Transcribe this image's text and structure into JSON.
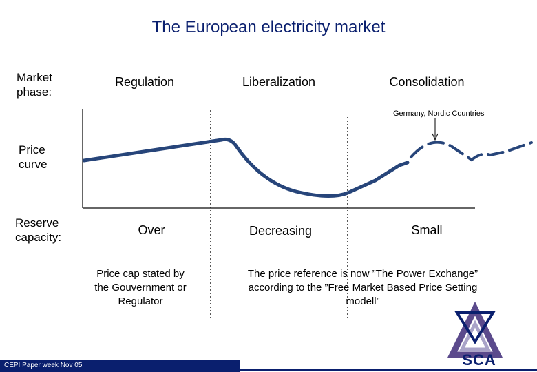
{
  "title": "The European electricity market",
  "labels": {
    "market_phase": "Market\nphase:",
    "price_curve": "Price\ncurve",
    "reserve_capacity": "Reserve\ncapacity:"
  },
  "phases": [
    "Regulation",
    "Liberalization",
    "Consolidation"
  ],
  "reserve": [
    "Over",
    "Decreasing",
    "Small"
  ],
  "annotation": "Germany, Nordic Countries",
  "notes": {
    "regulation": "Price cap stated by\nthe Gouvernment or\nRegulator",
    "liberalization": "The price reference is now ”The Power Exchange”\naccording to the ”Free Market Based Price Setting\nmodell”"
  },
  "footer": "CEPI Paper week Nov 05",
  "logo": {
    "text": "SCA",
    "colors": {
      "navy": "#0a1f6e",
      "purple": "#5b4a8c",
      "lavender": "#a9a3c8"
    }
  },
  "colors": {
    "title": "#0a1f6e",
    "curve": "#27457a",
    "axis": "#333333",
    "footer": "#0a1f6e"
  }
}
